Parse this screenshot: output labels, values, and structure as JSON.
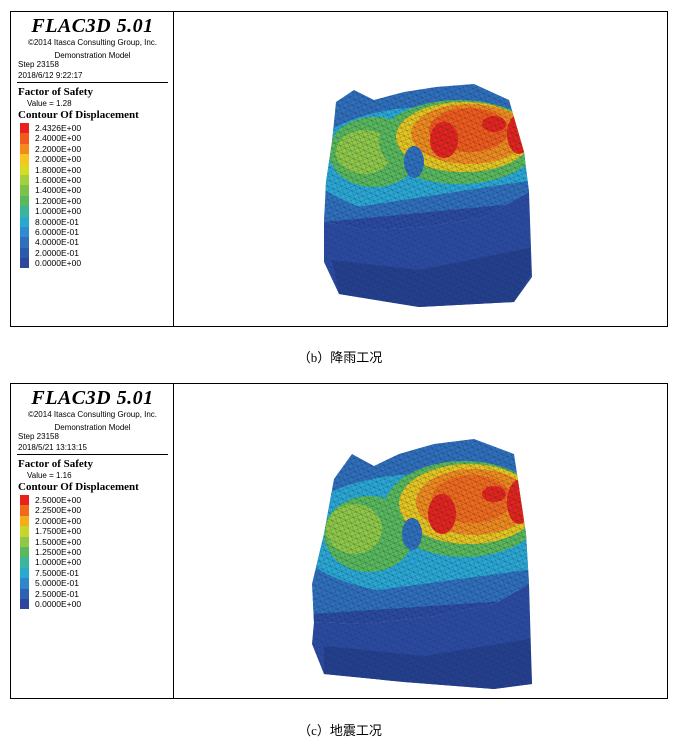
{
  "panels": [
    {
      "software_title": "FLAC3D 5.01",
      "copyright": "©2014 Itasca Consulting Group, Inc.",
      "model": "Demonstration Model",
      "step": "Step 23158",
      "date": "2018/6/12 9:22:17",
      "fos_label": "Factor of Safety",
      "fos_value": "Value = 1.28",
      "contour_label": "Contour Of Displacement",
      "legend": [
        {
          "label": "2.4326E+00",
          "color": "#e8211d"
        },
        {
          "label": "2.4000E+00",
          "color": "#f05a1a"
        },
        {
          "label": "2.2000E+00",
          "color": "#f38a1c"
        },
        {
          "label": "2.0000E+00",
          "color": "#f7c51d"
        },
        {
          "label": "1.8000E+00",
          "color": "#d6dd21"
        },
        {
          "label": "1.6000E+00",
          "color": "#a5cf3b"
        },
        {
          "label": "1.4000E+00",
          "color": "#7cc14c"
        },
        {
          "label": "1.2000E+00",
          "color": "#57b85c"
        },
        {
          "label": "1.0000E+00",
          "color": "#3ab49a"
        },
        {
          "label": "8.0000E-01",
          "color": "#27a9d0"
        },
        {
          "label": "6.0000E-01",
          "color": "#2f8cce"
        },
        {
          "label": "4.0000E-01",
          "color": "#2f6fbb"
        },
        {
          "label": "2.0000E-01",
          "color": "#2d59ab"
        },
        {
          "label": "0.0000E+00",
          "color": "#2c479c"
        }
      ],
      "caption": "（b）降雨工况"
    },
    {
      "software_title": "FLAC3D 5.01",
      "copyright": "©2014 Itasca Consulting Group, Inc.",
      "model": "Demonstration Model",
      "step": "Step 23158",
      "date": "2018/5/21 13:13:15",
      "fos_label": "Factor of Safety",
      "fos_value": "Value = 1.16",
      "contour_label": "Contour Of Displacement",
      "legend": [
        {
          "label": "2.5000E+00",
          "color": "#e8211d"
        },
        {
          "label": "2.2500E+00",
          "color": "#f06a1b"
        },
        {
          "label": "2.0000E+00",
          "color": "#f6ad1c"
        },
        {
          "label": "1.7500E+00",
          "color": "#c8d62a"
        },
        {
          "label": "1.5000E+00",
          "color": "#8fc846"
        },
        {
          "label": "1.2500E+00",
          "color": "#5cb95a"
        },
        {
          "label": "1.0000E+00",
          "color": "#3bb59b"
        },
        {
          "label": "7.5000E-01",
          "color": "#27a9d0"
        },
        {
          "label": "5.0000E-01",
          "color": "#2f86c9"
        },
        {
          "label": "2.5000E-01",
          "color": "#2d62b2"
        },
        {
          "label": "0.0000E+00",
          "color": "#2c479c"
        }
      ],
      "caption": "（c）地震工况"
    }
  ],
  "colors": {
    "deep_blue": "#2b4a9f",
    "mid_blue": "#3c77c6",
    "cyan": "#2aa8d3",
    "green": "#59b85a",
    "yellow": "#e6c51f",
    "orange": "#f08a1c",
    "red": "#e4241c"
  }
}
